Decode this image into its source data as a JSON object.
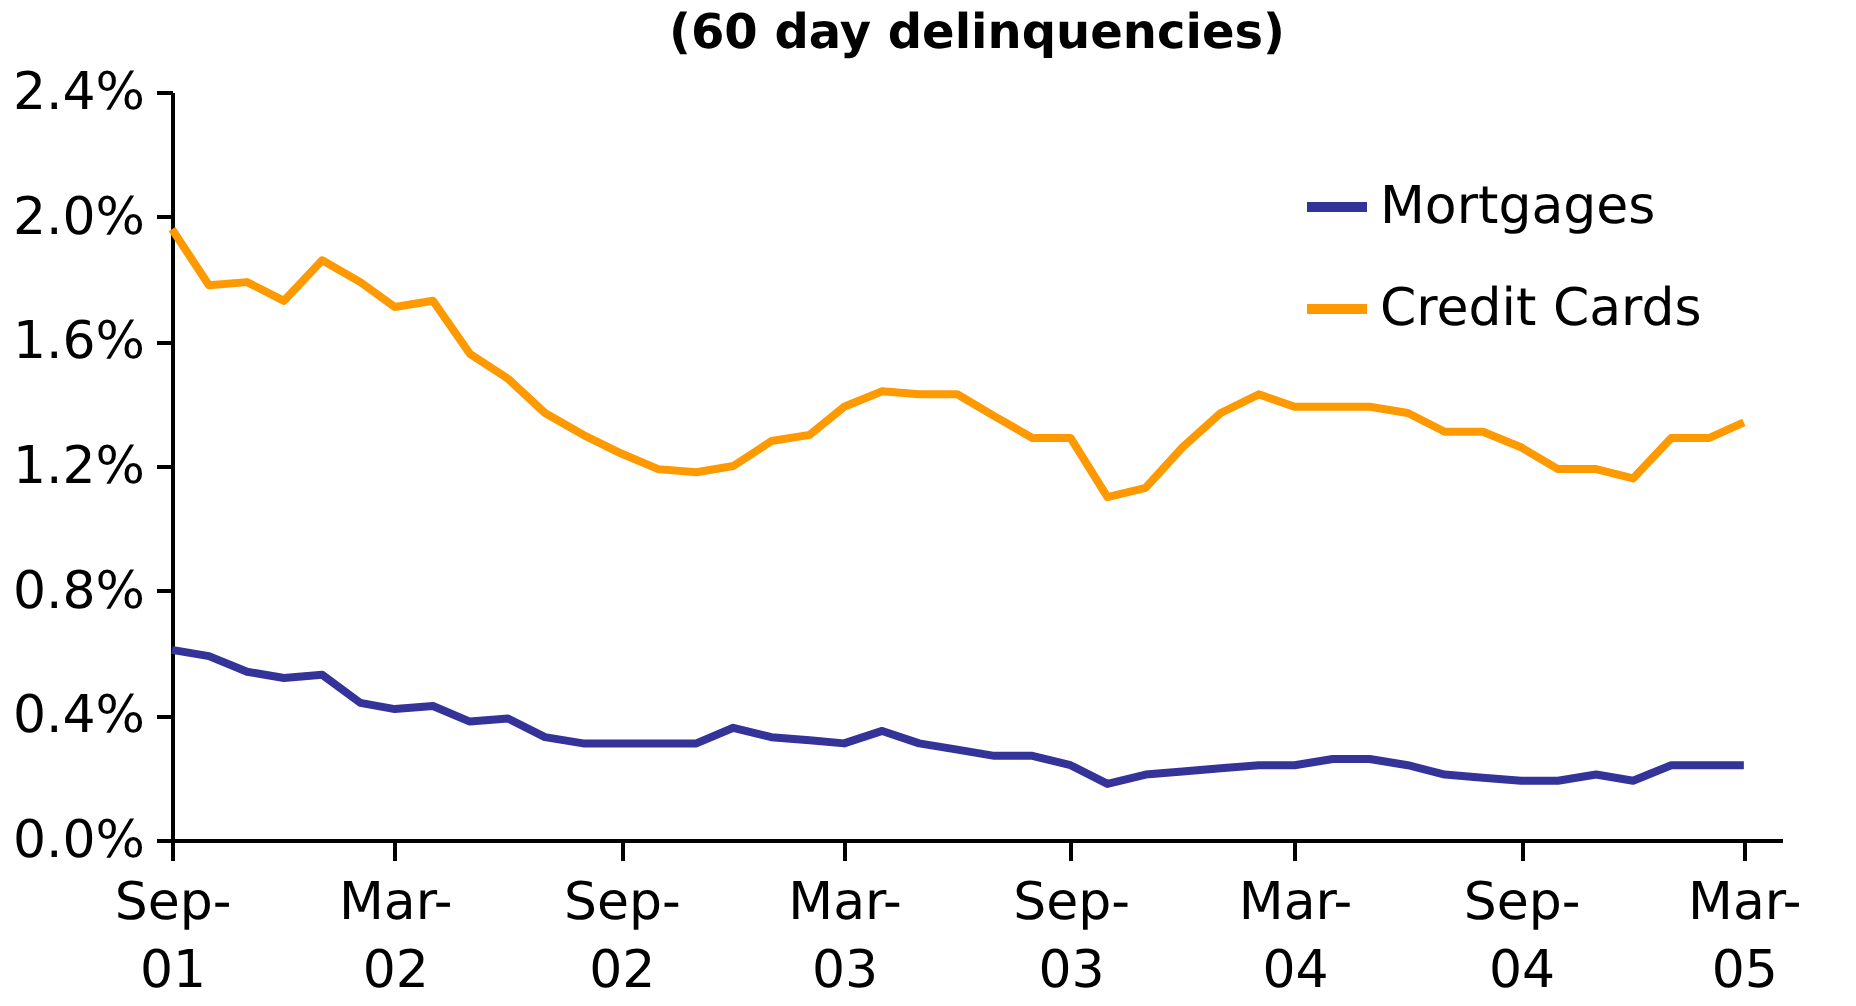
{
  "chart_data": {
    "type": "line",
    "title": "(60 day delinquencies)",
    "x": [
      "2001-09",
      "2001-10",
      "2001-11",
      "2001-12",
      "2002-01",
      "2002-02",
      "2002-03",
      "2002-04",
      "2002-05",
      "2002-06",
      "2002-07",
      "2002-08",
      "2002-09",
      "2002-10",
      "2002-11",
      "2002-12",
      "2003-01",
      "2003-02",
      "2003-03",
      "2003-04",
      "2003-05",
      "2003-06",
      "2003-07",
      "2003-08",
      "2003-09",
      "2003-10",
      "2003-11",
      "2003-12",
      "2004-01",
      "2004-02",
      "2004-03",
      "2004-04",
      "2004-05",
      "2004-06",
      "2004-07",
      "2004-08",
      "2004-09",
      "2004-10",
      "2004-11",
      "2004-12",
      "2005-01",
      "2005-02",
      "2005-03"
    ],
    "series": [
      {
        "name": "Mortgages",
        "color": "#333399",
        "values": [
          0.61,
          0.59,
          0.54,
          0.52,
          0.53,
          0.44,
          0.42,
          0.43,
          0.38,
          0.39,
          0.33,
          0.31,
          0.31,
          0.31,
          0.31,
          0.36,
          0.33,
          0.32,
          0.31,
          0.35,
          0.31,
          0.29,
          0.27,
          0.27,
          0.24,
          0.18,
          0.21,
          0.22,
          0.23,
          0.24,
          0.24,
          0.26,
          0.26,
          0.24,
          0.21,
          0.2,
          0.19,
          0.19,
          0.21,
          0.19,
          0.24,
          0.24,
          0.24
        ]
      },
      {
        "name": "Credit Cards",
        "color": "#ff9900",
        "values": [
          1.96,
          1.78,
          1.79,
          1.73,
          1.86,
          1.79,
          1.71,
          1.73,
          1.56,
          1.48,
          1.37,
          1.3,
          1.24,
          1.19,
          1.18,
          1.2,
          1.28,
          1.3,
          1.39,
          1.44,
          1.43,
          1.43,
          1.36,
          1.29,
          1.29,
          1.1,
          1.13,
          1.26,
          1.37,
          1.43,
          1.39,
          1.39,
          1.39,
          1.37,
          1.31,
          1.31,
          1.26,
          1.19,
          1.19,
          1.16,
          1.29,
          1.29,
          1.34
        ]
      }
    ],
    "xlim": [
      "2001-09",
      "2005-04"
    ],
    "xticks": [
      {
        "value": "2001-09",
        "label": "Sep-\n01"
      },
      {
        "value": "2002-03",
        "label": "Mar-\n02"
      },
      {
        "value": "2002-09",
        "label": "Sep-\n02"
      },
      {
        "value": "2003-03",
        "label": "Mar-\n03"
      },
      {
        "value": "2003-09",
        "label": "Sep-\n03"
      },
      {
        "value": "2004-03",
        "label": "Mar-\n04"
      },
      {
        "value": "2004-09",
        "label": "Sep-\n04"
      },
      {
        "value": "2005-03",
        "label": "Mar-\n05"
      }
    ],
    "ylim": [
      0,
      2.4
    ],
    "yticks": [
      {
        "value": 0,
        "label": "0.0%"
      },
      {
        "value": 0.4,
        "label": "0.4%"
      },
      {
        "value": 0.8,
        "label": "0.8%"
      },
      {
        "value": 1.2,
        "label": "1.2%"
      },
      {
        "value": 1.6,
        "label": "1.6%"
      },
      {
        "value": 2.0,
        "label": "2.0%"
      },
      {
        "value": 2.4,
        "label": "2.4%"
      }
    ],
    "grid": false,
    "legend": "top right",
    "marker": "none",
    "line_style": "solid"
  }
}
